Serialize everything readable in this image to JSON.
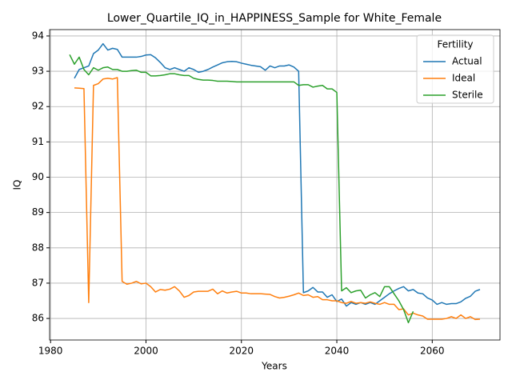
{
  "chart_data": {
    "type": "line",
    "title": "Lower_Quartile_IQ_in_HAPPINESS_Sample for White_Female",
    "x_label": "Years",
    "y_label": "IQ",
    "legend_title": "Fertility",
    "legend_loc": "upper right",
    "grid": true,
    "x": [
      1984,
      1985,
      1986,
      1987,
      1988,
      1989,
      1990,
      1991,
      1992,
      1993,
      1994,
      1995,
      1996,
      1997,
      1998,
      1999,
      2000,
      2001,
      2002,
      2003,
      2004,
      2005,
      2006,
      2007,
      2008,
      2009,
      2010,
      2011,
      2012,
      2013,
      2014,
      2015,
      2016,
      2017,
      2018,
      2019,
      2020,
      2021,
      2022,
      2023,
      2024,
      2025,
      2026,
      2027,
      2028,
      2029,
      2030,
      2031,
      2032,
      2033,
      2034,
      2035,
      2036,
      2037,
      2038,
      2039,
      2040,
      2041,
      2042,
      2043,
      2044,
      2045,
      2046,
      2047,
      2048,
      2049,
      2050,
      2051,
      2052,
      2053,
      2054,
      2055,
      2056,
      2057,
      2058,
      2059,
      2060,
      2061,
      2062,
      2063,
      2064,
      2065,
      2066,
      2067,
      2068,
      2069,
      2070
    ],
    "xlim": [
      1979.8,
      2074.2
    ],
    "xticks": [
      1980,
      2000,
      2020,
      2040,
      2060
    ],
    "ylim": [
      85.39,
      94.18
    ],
    "yticks": [
      86,
      87,
      88,
      89,
      90,
      91,
      92,
      93,
      94
    ],
    "series": [
      {
        "name": "Actual",
        "color": "#1f77b4",
        "values": [
          null,
          92.8,
          93.05,
          93.1,
          93.15,
          93.5,
          93.6,
          93.78,
          93.6,
          93.65,
          93.62,
          93.4,
          93.4,
          93.4,
          93.4,
          93.42,
          93.46,
          93.47,
          93.38,
          93.25,
          93.1,
          93.05,
          93.1,
          93.05,
          93.0,
          93.1,
          93.05,
          92.97,
          93.0,
          93.05,
          93.12,
          93.18,
          93.24,
          93.27,
          93.28,
          93.27,
          93.23,
          93.2,
          93.17,
          93.15,
          93.13,
          93.03,
          93.15,
          93.1,
          93.15,
          93.15,
          93.18,
          93.12,
          93.0,
          86.73,
          86.78,
          86.88,
          86.75,
          86.75,
          86.6,
          86.67,
          86.48,
          86.55,
          86.35,
          86.45,
          86.4,
          86.45,
          86.4,
          86.45,
          86.4,
          86.5,
          86.6,
          86.7,
          86.78,
          86.85,
          86.9,
          86.78,
          86.82,
          86.72,
          86.7,
          86.58,
          86.52,
          86.4,
          86.45,
          86.4,
          86.42,
          86.42,
          86.47,
          86.57,
          86.63,
          86.77,
          86.82
        ]
      },
      {
        "name": "Ideal",
        "color": "#ff7f0e",
        "values": [
          null,
          92.53,
          92.52,
          92.51,
          86.45,
          92.6,
          92.65,
          92.78,
          92.8,
          92.78,
          92.82,
          87.05,
          86.97,
          87.0,
          87.05,
          86.98,
          87.0,
          86.9,
          86.75,
          86.82,
          86.8,
          86.83,
          86.9,
          86.78,
          86.6,
          86.65,
          86.75,
          86.77,
          86.77,
          86.77,
          86.83,
          86.7,
          86.78,
          86.72,
          86.75,
          86.77,
          86.72,
          86.72,
          86.7,
          86.7,
          86.7,
          86.69,
          86.68,
          86.62,
          86.58,
          86.6,
          86.63,
          86.67,
          86.72,
          86.65,
          86.67,
          86.6,
          86.62,
          86.53,
          86.53,
          86.5,
          86.5,
          86.45,
          86.43,
          86.48,
          86.43,
          86.45,
          86.43,
          86.47,
          86.43,
          86.4,
          86.45,
          86.4,
          86.4,
          86.25,
          86.27,
          86.1,
          86.15,
          86.1,
          86.07,
          85.98,
          85.98,
          85.98,
          85.98,
          86.0,
          86.05,
          86.0,
          86.1,
          86.0,
          86.05,
          85.97,
          85.98
        ]
      },
      {
        "name": "Sterile",
        "color": "#2ca02c",
        "values": [
          93.47,
          93.2,
          93.4,
          93.05,
          92.9,
          93.1,
          93.03,
          93.1,
          93.12,
          93.05,
          93.05,
          93.0,
          93.0,
          93.02,
          93.03,
          92.97,
          92.97,
          92.87,
          92.87,
          92.88,
          92.9,
          92.93,
          92.93,
          92.9,
          92.88,
          92.88,
          92.8,
          92.77,
          92.75,
          92.75,
          92.74,
          92.72,
          92.72,
          92.72,
          92.71,
          92.7,
          92.7,
          92.7,
          92.7,
          92.7,
          92.7,
          92.7,
          92.7,
          92.7,
          92.7,
          92.7,
          92.7,
          92.7,
          92.6,
          92.62,
          92.62,
          92.55,
          92.58,
          92.6,
          92.5,
          92.5,
          92.4,
          86.78,
          86.87,
          86.73,
          86.78,
          86.8,
          86.58,
          86.67,
          86.73,
          86.62,
          86.9,
          86.9,
          86.7,
          86.5,
          86.25,
          85.88,
          86.2,
          null,
          null,
          null,
          null,
          null,
          null,
          null,
          null,
          null,
          null,
          null,
          null,
          null,
          null
        ]
      }
    ]
  }
}
